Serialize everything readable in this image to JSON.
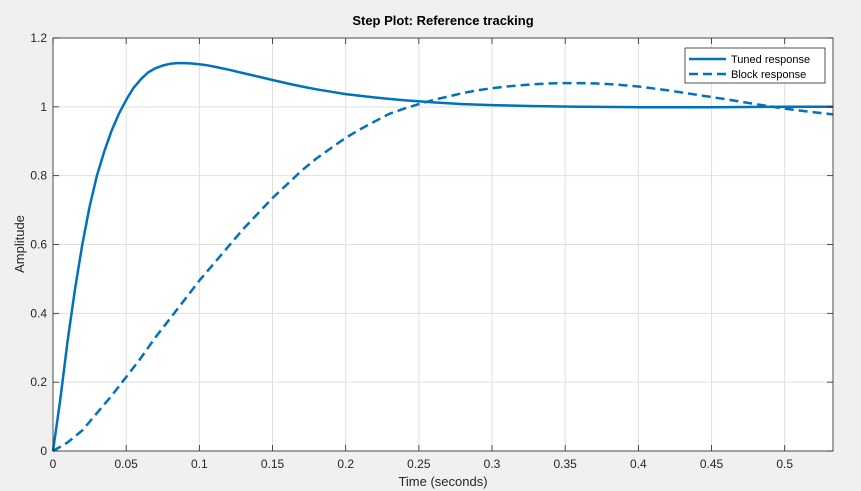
{
  "chart_data": {
    "type": "line",
    "title": "Step Plot: Reference tracking",
    "xlabel": "Time (seconds)",
    "ylabel": "Amplitude",
    "xlim": [
      0,
      0.533
    ],
    "ylim": [
      0,
      1.2
    ],
    "xticks": [
      0,
      0.05,
      0.1,
      0.15,
      0.2,
      0.25,
      0.3,
      0.35,
      0.4,
      0.45,
      0.5
    ],
    "xtick_labels": [
      "0",
      "0.05",
      "0.1",
      "0.15",
      "0.2",
      "0.25",
      "0.3",
      "0.35",
      "0.4",
      "0.45",
      "0.5"
    ],
    "yticks": [
      0,
      0.2,
      0.4,
      0.6,
      0.8,
      1,
      1.2
    ],
    "ytick_labels": [
      "0",
      "0.2",
      "0.4",
      "0.6",
      "0.8",
      "1",
      "1.2"
    ],
    "grid": true,
    "legend_position": "top-right",
    "series": [
      {
        "name": "Tuned response",
        "style": "solid",
        "color": "#0072bd",
        "x": [
          0,
          0.005,
          0.01,
          0.015,
          0.02,
          0.025,
          0.03,
          0.035,
          0.04,
          0.045,
          0.05,
          0.055,
          0.06,
          0.065,
          0.07,
          0.075,
          0.08,
          0.085,
          0.09,
          0.095,
          0.1,
          0.105,
          0.11,
          0.12,
          0.13,
          0.14,
          0.15,
          0.16,
          0.17,
          0.18,
          0.19,
          0.2,
          0.22,
          0.24,
          0.26,
          0.28,
          0.3,
          0.33,
          0.36,
          0.4,
          0.45,
          0.5,
          0.533
        ],
        "y": [
          0,
          0.15,
          0.32,
          0.47,
          0.6,
          0.71,
          0.8,
          0.87,
          0.93,
          0.98,
          1.02,
          1.055,
          1.08,
          1.1,
          1.112,
          1.12,
          1.125,
          1.127,
          1.127,
          1.126,
          1.124,
          1.121,
          1.117,
          1.108,
          1.098,
          1.088,
          1.078,
          1.068,
          1.059,
          1.051,
          1.044,
          1.037,
          1.027,
          1.019,
          1.013,
          1.008,
          1.005,
          1.002,
          1.0,
          0.999,
          0.999,
          1.0,
          1.0
        ]
      },
      {
        "name": "Block response",
        "style": "dashed",
        "color": "#0072bd",
        "x": [
          0,
          0.01,
          0.02,
          0.03,
          0.04,
          0.05,
          0.06,
          0.07,
          0.08,
          0.09,
          0.1,
          0.11,
          0.12,
          0.13,
          0.14,
          0.15,
          0.16,
          0.17,
          0.18,
          0.19,
          0.2,
          0.21,
          0.22,
          0.23,
          0.24,
          0.25,
          0.26,
          0.27,
          0.28,
          0.29,
          0.3,
          0.31,
          0.32,
          0.33,
          0.34,
          0.35,
          0.36,
          0.37,
          0.38,
          0.39,
          0.4,
          0.42,
          0.44,
          0.46,
          0.48,
          0.5,
          0.52,
          0.533
        ],
        "y": [
          0,
          0.025,
          0.06,
          0.11,
          0.16,
          0.215,
          0.27,
          0.33,
          0.385,
          0.44,
          0.495,
          0.545,
          0.595,
          0.645,
          0.69,
          0.735,
          0.775,
          0.815,
          0.85,
          0.88,
          0.91,
          0.935,
          0.958,
          0.98,
          0.995,
          1.008,
          1.02,
          1.03,
          1.04,
          1.048,
          1.054,
          1.059,
          1.063,
          1.066,
          1.068,
          1.069,
          1.069,
          1.068,
          1.066,
          1.063,
          1.059,
          1.048,
          1.035,
          1.022,
          1.008,
          0.995,
          0.984,
          0.978
        ]
      }
    ]
  }
}
